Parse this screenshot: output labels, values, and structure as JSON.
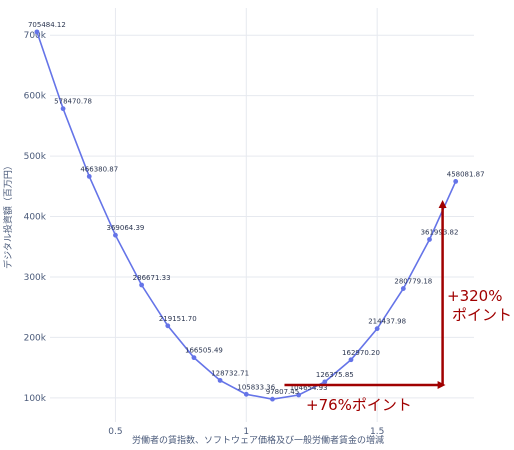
{
  "chart_data": {
    "type": "line",
    "title": "",
    "xlabel": "労働者の賃指数、ソフトウェア価格及び一般労働者賃金の増減",
    "ylabel": "デジタル投資額（百万円）",
    "xlim": [
      0.25,
      1.87
    ],
    "ylim": [
      60000,
      745000
    ],
    "x_ticks": [
      0.5,
      1,
      1.5
    ],
    "x_tick_labels": [
      "0.5",
      "1",
      "1.5"
    ],
    "y_ticks": [
      100000,
      200000,
      300000,
      400000,
      500000,
      600000,
      700000
    ],
    "y_tick_labels": [
      "100k",
      "200k",
      "300k",
      "400k",
      "500k",
      "600k",
      "700k"
    ],
    "grid": true,
    "series": [
      {
        "x": [
          0.2,
          0.3,
          0.4,
          0.5,
          0.6,
          0.7,
          0.8,
          0.9,
          1.0,
          1.1,
          1.2,
          1.3,
          1.4,
          1.5,
          1.6,
          1.7,
          1.8
        ],
        "values": [
          705484.12,
          578470.78,
          466380.87,
          369064.39,
          286671.33,
          219151.7,
          166505.49,
          128732.71,
          105833.36,
          97807.45,
          104654.93,
          126375.85,
          162970.2,
          214437.98,
          280779.18,
          361993.82,
          458081.87
        ],
        "labels": [
          "705484.12",
          "578470.78",
          "466380.87",
          "369064.39",
          "286671.33",
          "219151.70",
          "166505.49",
          "128732.71",
          "105833.36",
          "97807.45",
          "104654.93",
          "126375.85",
          "162970.20",
          "214437.98",
          "280779.18",
          "361993.82",
          "458081.87"
        ],
        "color": "#6574e8"
      }
    ],
    "annotations": [
      {
        "text": "+76%ポイント",
        "color": "#a00000"
      },
      {
        "text_lines": [
          "+320%",
          "ポイント"
        ],
        "color": "#a00000"
      }
    ]
  }
}
